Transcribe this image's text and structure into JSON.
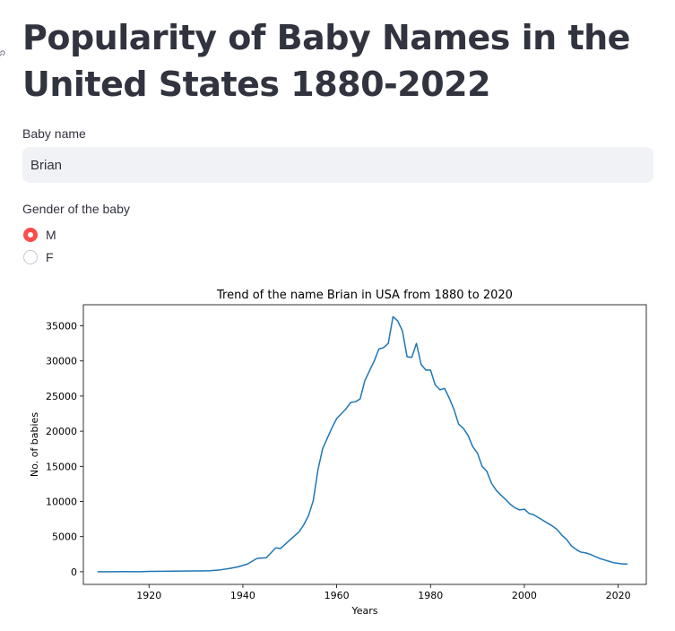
{
  "header": {
    "title": "Popularity of Baby Names in the United States 1880-2022"
  },
  "name_input": {
    "label": "Baby name",
    "value": "Brian"
  },
  "gender": {
    "label": "Gender of the baby",
    "options": [
      {
        "label": "M",
        "selected": true
      },
      {
        "label": "F",
        "selected": false
      }
    ]
  },
  "colors": {
    "accent": "#ff4b4b",
    "line": "#1f77b4",
    "input_bg": "#f0f2f6",
    "text": "#31333f"
  },
  "chart_data": {
    "type": "line",
    "title": "Trend of the name Brian in USA from 1880 to 2020",
    "xlabel": "Years",
    "ylabel": "No. of babies",
    "xlim": [
      1906,
      2026
    ],
    "ylim": [
      -1800,
      38000
    ],
    "xticks": [
      1920,
      1940,
      1960,
      1980,
      2000,
      2020
    ],
    "yticks": [
      0,
      5000,
      10000,
      15000,
      20000,
      25000,
      30000,
      35000
    ],
    "grid": false,
    "series": [
      {
        "x": [
          1909,
          1912,
          1915,
          1918,
          1920,
          1923,
          1925,
          1927,
          1929,
          1931,
          1933,
          1935,
          1937,
          1939,
          1941,
          1943,
          1945,
          1946,
          1947,
          1948,
          1949,
          1950,
          1951,
          1952,
          1953,
          1954,
          1955,
          1956,
          1957,
          1958,
          1959,
          1960,
          1961,
          1962,
          1963,
          1964,
          1965,
          1966,
          1967,
          1968,
          1969,
          1970,
          1971,
          1972,
          1973,
          1974,
          1975,
          1976,
          1977,
          1978,
          1979,
          1980,
          1981,
          1982,
          1983,
          1984,
          1985,
          1986,
          1987,
          1988,
          1989,
          1990,
          1991,
          1992,
          1993,
          1994,
          1995,
          1996,
          1997,
          1998,
          1999,
          2000,
          2001,
          2002,
          2003,
          2004,
          2005,
          2006,
          2007,
          2008,
          2009,
          2010,
          2011,
          2012,
          2013,
          2014,
          2015,
          2016,
          2017,
          2018,
          2019,
          2020,
          2021,
          2022
        ],
        "y": [
          0,
          0,
          10,
          0,
          50,
          60,
          80,
          100,
          120,
          110,
          150,
          250,
          450,
          700,
          1100,
          1900,
          2000,
          2700,
          3400,
          3300,
          3900,
          4500,
          5100,
          5700,
          6700,
          8000,
          10100,
          14500,
          17500,
          19000,
          20500,
          21800,
          22500,
          23200,
          24100,
          24200,
          24600,
          27200,
          28600,
          30000,
          31700,
          31900,
          32500,
          36300,
          35700,
          34300,
          30600,
          30500,
          32500,
          29500,
          28700,
          28700,
          26600,
          25900,
          26100,
          24700,
          23100,
          21000,
          20400,
          19400,
          17800,
          16900,
          15000,
          14300,
          12600,
          11600,
          10900,
          10300,
          9600,
          9100,
          8800,
          8900,
          8300,
          8100,
          7700,
          7300,
          6900,
          6500,
          6000,
          5200,
          4600,
          3700,
          3200,
          2800,
          2700,
          2500,
          2200,
          1900,
          1700,
          1500,
          1300,
          1200,
          1100,
          1100
        ]
      }
    ]
  }
}
